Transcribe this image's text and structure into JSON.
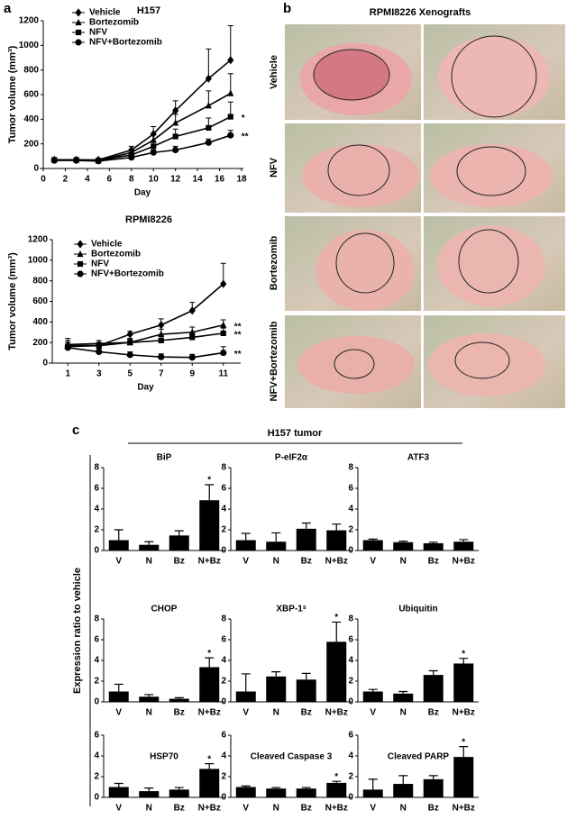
{
  "panel_labels": [
    "a",
    "b",
    "c"
  ],
  "photo_panel": {
    "title": "RPMI8226 Xenografts",
    "rows": [
      "Vehicle",
      "NFV",
      "Bortezomib",
      "NFV+Bortezomib"
    ]
  },
  "figure_c": {
    "title": "H157 tumor",
    "ylabel": "Expression ratio to vehicle"
  },
  "chart_data": [
    {
      "type": "line",
      "title": "H157",
      "xlabel": "Day",
      "ylabel": "Tumor volume (mm³)",
      "x": [
        1,
        3,
        5,
        8,
        10,
        12,
        15,
        17
      ],
      "xlim": [
        0,
        18
      ],
      "xticks": [
        0,
        2,
        4,
        6,
        8,
        10,
        12,
        14,
        16,
        18
      ],
      "ylim": [
        0,
        1200
      ],
      "yticks": [
        0,
        200,
        400,
        600,
        800,
        1000,
        1200
      ],
      "series": [
        {
          "name": "Vehicle",
          "color": "#000000",
          "marker": "diamond",
          "values": [
            70,
            70,
            70,
            150,
            280,
            470,
            730,
            880
          ],
          "errors": [
            10,
            10,
            10,
            30,
            60,
            80,
            240,
            280
          ]
        },
        {
          "name": "Bortezomib",
          "color": "#000000",
          "marker": "triangle",
          "values": [
            70,
            70,
            65,
            130,
            230,
            370,
            510,
            610
          ],
          "errors": [
            10,
            10,
            10,
            20,
            50,
            70,
            120,
            160
          ]
        },
        {
          "name": "NFV",
          "color": "#000000",
          "marker": "square",
          "values": [
            70,
            70,
            65,
            110,
            180,
            260,
            330,
            420
          ],
          "errors": [
            10,
            10,
            10,
            20,
            40,
            60,
            80,
            120
          ],
          "annotation": "*"
        },
        {
          "name": "NFV+Bortezomib",
          "color": "#000000",
          "marker": "circle",
          "values": [
            65,
            65,
            60,
            90,
            130,
            150,
            210,
            270
          ],
          "errors": [
            10,
            10,
            10,
            15,
            20,
            30,
            30,
            40
          ],
          "annotation": "**"
        }
      ]
    },
    {
      "type": "line",
      "title": "RPMI8226",
      "xlabel": "Day",
      "ylabel": "Tumor volume (mm³)",
      "x": [
        1,
        3,
        5,
        7,
        9,
        11
      ],
      "xlim": [
        0,
        12
      ],
      "xticks": [
        1,
        3,
        5,
        7,
        9,
        11
      ],
      "ylim": [
        0,
        1200
      ],
      "yticks": [
        0,
        200,
        400,
        600,
        800,
        1000,
        1200
      ],
      "series": [
        {
          "name": "Vehicle",
          "color": "#000000",
          "marker": "diamond",
          "values": [
            170,
            170,
            280,
            370,
            510,
            770
          ],
          "errors": [
            50,
            30,
            30,
            60,
            80,
            200
          ]
        },
        {
          "name": "Bortezomib",
          "color": "#000000",
          "marker": "triangle",
          "values": [
            180,
            190,
            200,
            280,
            300,
            370
          ],
          "errors": [
            60,
            30,
            40,
            50,
            50,
            50
          ],
          "annotation": "**"
        },
        {
          "name": "NFV",
          "color": "#000000",
          "marker": "square",
          "values": [
            160,
            170,
            200,
            220,
            250,
            290
          ],
          "errors": [
            40,
            30,
            30,
            40,
            40,
            50
          ],
          "annotation": "**"
        },
        {
          "name": "NFV+Bortezomib",
          "color": "#000000",
          "marker": "circle",
          "values": [
            150,
            110,
            80,
            60,
            55,
            100
          ],
          "errors": [
            50,
            30,
            30,
            30,
            30,
            60
          ],
          "annotation": "**"
        }
      ]
    },
    {
      "type": "bar",
      "title": "BiP",
      "categories": [
        "V",
        "N",
        "Bz",
        "N+Bz"
      ],
      "color": "#000000",
      "ylim": [
        0,
        8
      ],
      "yticks": [
        0,
        2,
        4,
        6,
        8
      ],
      "values": [
        1.0,
        0.55,
        1.45,
        4.85
      ],
      "errors": [
        1.0,
        0.3,
        0.45,
        1.5
      ],
      "annotations": [
        {
          "category": "N+Bz",
          "text": "*"
        }
      ]
    },
    {
      "type": "bar",
      "title": "P-eIF2α",
      "categories": [
        "V",
        "N",
        "Bz",
        "N+Bz"
      ],
      "color": "#000000",
      "ylim": [
        0,
        8
      ],
      "yticks": [
        0,
        2,
        4,
        6,
        8
      ],
      "values": [
        1.0,
        0.85,
        2.1,
        1.95
      ],
      "errors": [
        0.65,
        0.85,
        0.55,
        0.6
      ]
    },
    {
      "type": "bar",
      "title": "ATF3",
      "categories": [
        "V",
        "N",
        "Bz",
        "N+Bz"
      ],
      "color": "#000000",
      "ylim": [
        0,
        8
      ],
      "yticks": [
        0,
        2,
        4,
        6,
        8
      ],
      "values": [
        1.0,
        0.8,
        0.7,
        0.85
      ],
      "errors": [
        0.1,
        0.1,
        0.1,
        0.2
      ]
    },
    {
      "type": "bar",
      "title": "CHOP",
      "categories": [
        "V",
        "N",
        "Bz",
        "N+Bz"
      ],
      "color": "#000000",
      "ylim": [
        0,
        8
      ],
      "yticks": [
        0,
        2,
        4,
        6,
        8
      ],
      "values": [
        1.0,
        0.5,
        0.3,
        3.35
      ],
      "errors": [
        0.7,
        0.2,
        0.1,
        0.9
      ],
      "annotations": [
        {
          "category": "N+Bz",
          "text": "*"
        }
      ]
    },
    {
      "type": "bar",
      "title": "XBP-1ˢ",
      "categories": [
        "V",
        "N",
        "Bz",
        "N+Bz"
      ],
      "color": "#000000",
      "ylim": [
        0,
        8
      ],
      "yticks": [
        0,
        2,
        4,
        6,
        8
      ],
      "values": [
        1.0,
        2.45,
        2.15,
        5.8
      ],
      "errors": [
        1.7,
        0.45,
        0.6,
        1.9
      ],
      "annotations": [
        {
          "category": "N+Bz",
          "text": "*"
        }
      ]
    },
    {
      "type": "bar",
      "title": "Ubiquitin",
      "categories": [
        "V",
        "N",
        "Bz",
        "N+Bz"
      ],
      "color": "#000000",
      "ylim": [
        0,
        8
      ],
      "yticks": [
        0,
        2,
        4,
        6,
        8
      ],
      "values": [
        1.0,
        0.8,
        2.6,
        3.7
      ],
      "errors": [
        0.2,
        0.2,
        0.4,
        0.5
      ],
      "annotations": [
        {
          "category": "N+Bz",
          "text": "*"
        }
      ]
    },
    {
      "type": "bar",
      "title": "HSP70",
      "categories": [
        "V",
        "N",
        "Bz",
        "N+Bz"
      ],
      "color": "#000000",
      "ylim": [
        0,
        6
      ],
      "yticks": [
        0,
        2,
        4,
        6
      ],
      "values": [
        1.0,
        0.6,
        0.75,
        2.75
      ],
      "errors": [
        0.35,
        0.3,
        0.2,
        0.5
      ],
      "annotations": [
        {
          "category": "N+Bz",
          "text": "*"
        }
      ]
    },
    {
      "type": "bar",
      "title": "Cleaved Caspase 3",
      "categories": [
        "V",
        "N",
        "Bz",
        "N+Bz"
      ],
      "color": "#000000",
      "ylim": [
        0,
        6
      ],
      "yticks": [
        0,
        2,
        4,
        6
      ],
      "values": [
        1.0,
        0.85,
        0.85,
        1.4
      ],
      "errors": [
        0.1,
        0.1,
        0.1,
        0.15
      ],
      "annotations": [
        {
          "category": "N+Bz",
          "text": "*"
        }
      ]
    },
    {
      "type": "bar",
      "title": "Cleaved PARP",
      "categories": [
        "V",
        "N",
        "Bz",
        "N+Bz"
      ],
      "color": "#000000",
      "ylim": [
        0,
        6
      ],
      "yticks": [
        0,
        2,
        4,
        6
      ],
      "values": [
        0.75,
        1.3,
        1.75,
        3.9
      ],
      "errors": [
        1.0,
        0.8,
        0.35,
        1.0
      ],
      "annotations": [
        {
          "category": "N+Bz",
          "text": "*"
        }
      ]
    }
  ]
}
